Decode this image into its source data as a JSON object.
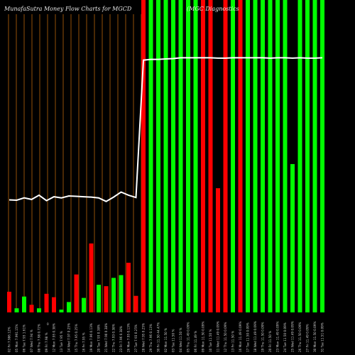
{
  "page": {
    "title_left": "MunafaSutra  Money Flow  Charts for MGCD",
    "title_right": "(MGC Diagnostics"
  },
  "chart_data": {
    "type": "bar",
    "title": "MunafaSutra  Money Flow  Charts for MGCD",
    "subtitle": "(MGC Diagnostics",
    "xlabel": "",
    "ylabel": "",
    "grid": false,
    "legend": "none",
    "colors": {
      "up": "#00ff00",
      "down": "#ff0000",
      "line": "#ffffff",
      "vline": "#b8650a",
      "background": "#000000"
    },
    "categories": [
      "02 Fri 7.986.12%",
      "05 Mon 7.991.15%",
      "06 Tue 7.93 1.61%",
      "07 Wed 7.94 %",
      "08 Thu 7.98 0.72%",
      "09 Fri 7.98 %",
      "12 Mon 7.95 0.38%",
      "13 Tue 7.95 %",
      "14 Wed 7.97 0.25%",
      "15 Thu 7.95 0.25%",
      "16 Fri 7.95 %",
      "19 Mon 7.96 0.13%",
      "20 Tue 7.93 0.38%",
      "21 Wed 7.90 0.38%",
      "22 Thu 7.93 0.38%",
      "23 Fri 7.96 0.38%",
      "26 Mon 7.95 0.13%",
      "27 Tue 7.93 0.25%",
      "28 Wed 7.95 0.25%",
      "29 Thu 7.96 0.13%",
      "30 Fri 11.50 44.47%",
      "02 Mon 11.50 %",
      "03 Tue 11.50 %",
      "04 Wed 11.50 %",
      "05 Thu 11.49 0.09%",
      "06 Fri 11.49 %",
      "09 Mon 11.50 0.09%",
      "10 Tue 11.50 %",
      "11 Wed 11.49 0.09%",
      "12 Thu 11.50 0.09%",
      "13 Fri 11.50 %",
      "16 Mon 11.49 0.09%",
      "17 Tue 11.50 0.09%",
      "18 Wed 11.49 0.09%",
      "19 Thu 11.50 0.09%",
      "20 Fri 11.50 %",
      "23 Mon 11.49 0.09%",
      "24 Tue 11.50 0.09%",
      "25 Wed 11.49 0.09%",
      "26 Thu 11.50 0.09%",
      "27 Fri 11.49 0.09%",
      "30 Mon 11.50 0.09%",
      "31 Tue 11.51 0.09%"
    ],
    "bars": [
      {
        "value": 30,
        "color": "down",
        "line": 7.9
      },
      {
        "value": 6,
        "color": "up",
        "line": 7.89
      },
      {
        "value": 23,
        "color": "up",
        "line": 7.95
      },
      {
        "value": 11,
        "color": "down",
        "line": 7.91
      },
      {
        "value": 6,
        "color": "up",
        "line": 8.02
      },
      {
        "value": 27,
        "color": "down",
        "line": 7.88
      },
      {
        "value": 22,
        "color": "down",
        "line": 7.98
      },
      {
        "value": 4,
        "color": "up",
        "line": 7.95
      },
      {
        "value": 15,
        "color": "up",
        "line": 8.0
      },
      {
        "value": 55,
        "color": "down",
        "line": 7.99
      },
      {
        "value": 21,
        "color": "up",
        "line": 7.98
      },
      {
        "value": 100,
        "color": "down",
        "line": 7.97
      },
      {
        "value": 40,
        "color": "up",
        "line": 7.95
      },
      {
        "value": 38,
        "color": "down",
        "line": 7.86
      },
      {
        "value": 50,
        "color": "up",
        "line": 7.97
      },
      {
        "value": 54,
        "color": "up",
        "line": 8.1
      },
      {
        "value": 72,
        "color": "down",
        "line": 8.02
      },
      {
        "value": 24,
        "color": "down",
        "line": 7.96
      },
      {
        "value": 999,
        "color": "down",
        "line": 11.5
      },
      {
        "value": 999,
        "color": "up",
        "line": 11.52
      },
      {
        "value": 999,
        "color": "up",
        "line": 11.52
      },
      {
        "value": 999,
        "color": "up",
        "line": 11.53
      },
      {
        "value": 999,
        "color": "up",
        "line": 11.54
      },
      {
        "value": 999,
        "color": "up",
        "line": 11.56
      },
      {
        "value": 999,
        "color": "up",
        "line": 11.56
      },
      {
        "value": 999,
        "color": "up",
        "line": 11.56
      },
      {
        "value": 999,
        "color": "down",
        "line": 11.56
      },
      {
        "value": 999,
        "color": "down",
        "line": 11.56
      },
      {
        "value": 180,
        "color": "down",
        "line": 11.55
      },
      {
        "value": 999,
        "color": "down",
        "line": 11.55
      },
      {
        "value": 999,
        "color": "up",
        "line": 11.56
      },
      {
        "value": 999,
        "color": "down",
        "line": 11.56
      },
      {
        "value": 999,
        "color": "up",
        "line": 11.56
      },
      {
        "value": 999,
        "color": "up",
        "line": 11.56
      },
      {
        "value": 999,
        "color": "up",
        "line": 11.56
      },
      {
        "value": 999,
        "color": "up",
        "line": 11.55
      },
      {
        "value": 999,
        "color": "up",
        "line": 11.56
      },
      {
        "value": 999,
        "color": "up",
        "line": 11.56
      },
      {
        "value": 215,
        "color": "up",
        "line": 11.55
      },
      {
        "value": 999,
        "color": "up",
        "line": 11.56
      },
      {
        "value": 999,
        "color": "up",
        "line": 11.55
      },
      {
        "value": 999,
        "color": "up",
        "line": 11.55
      },
      {
        "value": 999,
        "color": "up",
        "line": 11.56
      }
    ],
    "vlines": [
      12,
      23,
      34,
      45,
      56,
      67,
      78,
      89,
      100,
      111,
      122,
      133,
      144,
      155,
      166,
      177,
      188,
      199,
      210
    ],
    "side_label": "0",
    "ylim_bars": [
      0,
      350
    ],
    "ylim_line": [
      5,
      12.5
    ]
  }
}
